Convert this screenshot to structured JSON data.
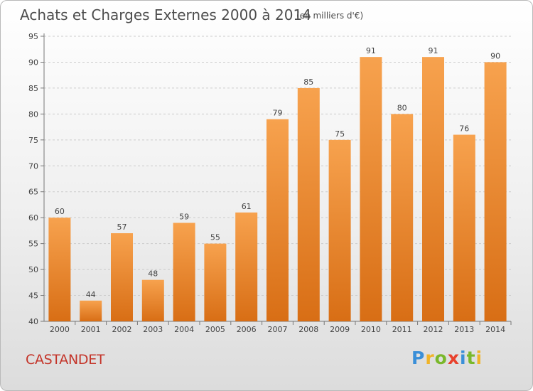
{
  "header": {
    "title": "Achats et Charges Externes 2000 à 2014",
    "subtitle": "(en milliers d'€)"
  },
  "commune": "CASTANDET",
  "logo": {
    "text": "Proxiti",
    "letters": [
      {
        "ch": "P",
        "color": "#3a8fd8"
      },
      {
        "ch": "r",
        "color": "#f0b429"
      },
      {
        "ch": "o",
        "color": "#7ab82b"
      },
      {
        "ch": "x",
        "color": "#e8412c"
      },
      {
        "ch": "i",
        "color": "#3a8fd8"
      },
      {
        "ch": "t",
        "color": "#7ab82b"
      },
      {
        "ch": "i",
        "color": "#f0b429"
      }
    ]
  },
  "colors": {
    "bar_top": "#f7a24e",
    "bar_bottom": "#d86e15",
    "grid": "#cccccc",
    "title": "#4d4d4d",
    "commune": "#c4352a"
  },
  "chart_data": {
    "type": "bar",
    "title": "Achats et Charges Externes 2000 à 2014",
    "subtitle": "(en milliers d'€)",
    "categories": [
      "2000",
      "2001",
      "2002",
      "2003",
      "2004",
      "2005",
      "2006",
      "2007",
      "2008",
      "2009",
      "2010",
      "2011",
      "2012",
      "2013",
      "2014"
    ],
    "values": [
      60,
      44,
      57,
      48,
      59,
      55,
      61,
      79,
      85,
      75,
      91,
      80,
      91,
      76,
      90
    ],
    "ylim": [
      40,
      95
    ],
    "yticks": [
      40,
      45,
      50,
      55,
      60,
      65,
      70,
      75,
      80,
      85,
      90,
      95
    ],
    "grid": "horizontal dashed",
    "xlabel": "",
    "ylabel": ""
  }
}
